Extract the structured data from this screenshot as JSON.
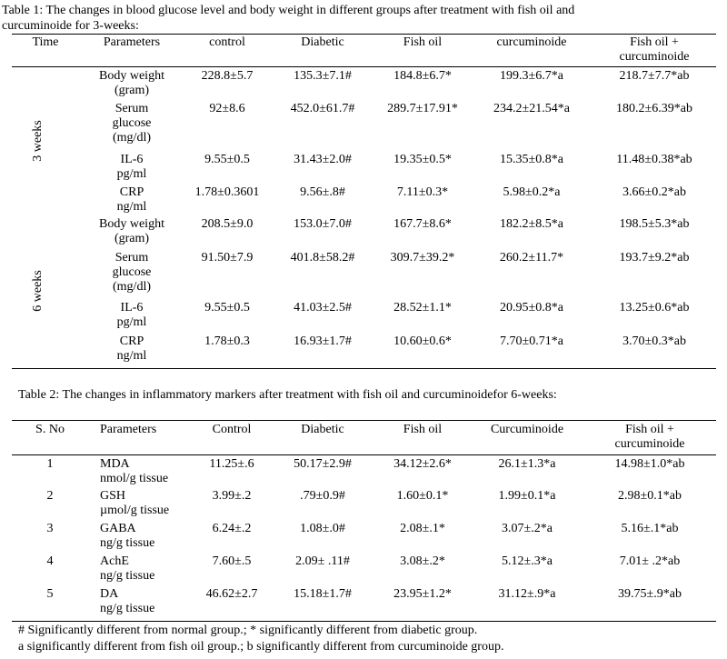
{
  "table1": {
    "caption": "Table 1: The changes in blood glucose level and body weight in different groups after treatment with fish oil and curcuminoide for 3-weeks:",
    "caption_line1": "Table 1: The changes in blood glucose level and body weight in different groups after treatment with fish oil and",
    "caption_line2": "curcuminoide for 3-weeks:",
    "headers": {
      "time": "Time",
      "parameters": "Parameters",
      "control": "control",
      "diabetic": "Diabetic",
      "fish_oil": "Fish oil",
      "curcuminoide": "curcuminoide",
      "combo_line1": "Fish oil +",
      "combo_line2": "curcuminoide"
    },
    "groups": [
      {
        "time_label": "3 weeks",
        "rows": [
          {
            "param": [
              "Body weight",
              "(gram)"
            ],
            "values": [
              "228.8±5.7",
              "135.3±7.1#",
              "184.8±6.7*",
              "199.3±6.7*a",
              "218.7±7.7*ab"
            ]
          },
          {
            "param": [
              "Serum",
              "glucose",
              "(mg/dl)"
            ],
            "values": [
              "92±8.6",
              "452.0±61.7#",
              "289.7±17.91*",
              "234.2±21.54*a",
              "180.2±6.39*ab"
            ]
          },
          {
            "param": [
              "IL-6",
              "pg/ml"
            ],
            "values": [
              "9.55±0.5",
              "31.43±2.0#",
              "19.35±0.5*",
              "15.35±0.8*a",
              "11.48±0.38*ab"
            ]
          },
          {
            "param": [
              "CRP",
              "ng/ml"
            ],
            "values": [
              "1.78±0.3601",
              "9.56±.8#",
              "7.11±0.3*",
              "5.98±0.2*a",
              "3.66±0.2*ab"
            ]
          }
        ]
      },
      {
        "time_label": "6 weeks",
        "rows": [
          {
            "param": [
              "Body weight",
              "(gram)"
            ],
            "values": [
              "208.5±9.0",
              "153.0±7.0#",
              "167.7±8.6*",
              "182.2±8.5*a",
              "198.5±5.3*ab"
            ]
          },
          {
            "param": [
              "Serum",
              "glucose",
              "(mg/dl)"
            ],
            "values": [
              "91.50±7.9",
              "401.8±58.2#",
              "309.7±39.2*",
              "260.2±11.7*",
              "193.7±9.2*ab"
            ]
          },
          {
            "param": [
              "IL-6",
              "pg/ml"
            ],
            "values": [
              "9.55±0.5",
              "41.03±2.5#",
              "28.52±1.1*",
              "20.95±0.8*a",
              "13.25±0.6*ab"
            ]
          },
          {
            "param": [
              "CRP",
              "ng/ml"
            ],
            "values": [
              "1.78±0.3",
              "16.93±1.7#",
              "10.60±0.6*",
              "7.70±0.71*a",
              "3.70±0.3*ab"
            ]
          }
        ]
      }
    ]
  },
  "table2": {
    "caption": "Table 2: The changes in inflammatory markers after treatment with fish oil and curcuminoidefor 6-weeks:",
    "headers": {
      "sno": "S. No",
      "parameters": "Parameters",
      "control": "Control",
      "diabetic": "Diabetic",
      "fish_oil": "Fish oil",
      "curcuminoide": "Curcuminoide",
      "combo_line1": "Fish oil +",
      "combo_line2": "curcuminoide"
    },
    "rows": [
      {
        "sno": "1",
        "param": [
          "MDA",
          "nmol/g tissue"
        ],
        "values": [
          "11.25±.6",
          "50.17±2.9#",
          "34.12±2.6*",
          "26.1±1.3*a",
          "14.98±1.0*ab"
        ]
      },
      {
        "sno": "2",
        "param": [
          "GSH",
          "µmol/g tissue"
        ],
        "values": [
          "3.99±.2",
          ".79±0.9#",
          "1.60±0.1*",
          "1.99±0.1*a",
          "2.98±0.1*ab"
        ]
      },
      {
        "sno": "3",
        "param": [
          "GABA",
          "ng/g tissue"
        ],
        "values": [
          "6.24±.2",
          "1.08±.0#",
          "2.08±.1*",
          "3.07±.2*a",
          "5.16±.1*ab"
        ]
      },
      {
        "sno": "4",
        "param": [
          "AchE",
          "ng/g tissue"
        ],
        "values": [
          "7.60±.5",
          "2.09± .11#",
          "3.08±.2*",
          "5.12±.3*a",
          "7.01± .2*ab"
        ]
      },
      {
        "sno": "5",
        "param": [
          "DA",
          "ng/g tissue"
        ],
        "values": [
          "46.62±2.7",
          "15.18±1.7#",
          "23.95±1.2*",
          "31.12±.9*a",
          "39.75±.9*ab"
        ]
      }
    ]
  },
  "footnotes": [
    "# Significantly different from normal group.; * significantly different from diabetic group.",
    "a significantly different from fish oil group.; b significantly different from curcuminoide group."
  ]
}
